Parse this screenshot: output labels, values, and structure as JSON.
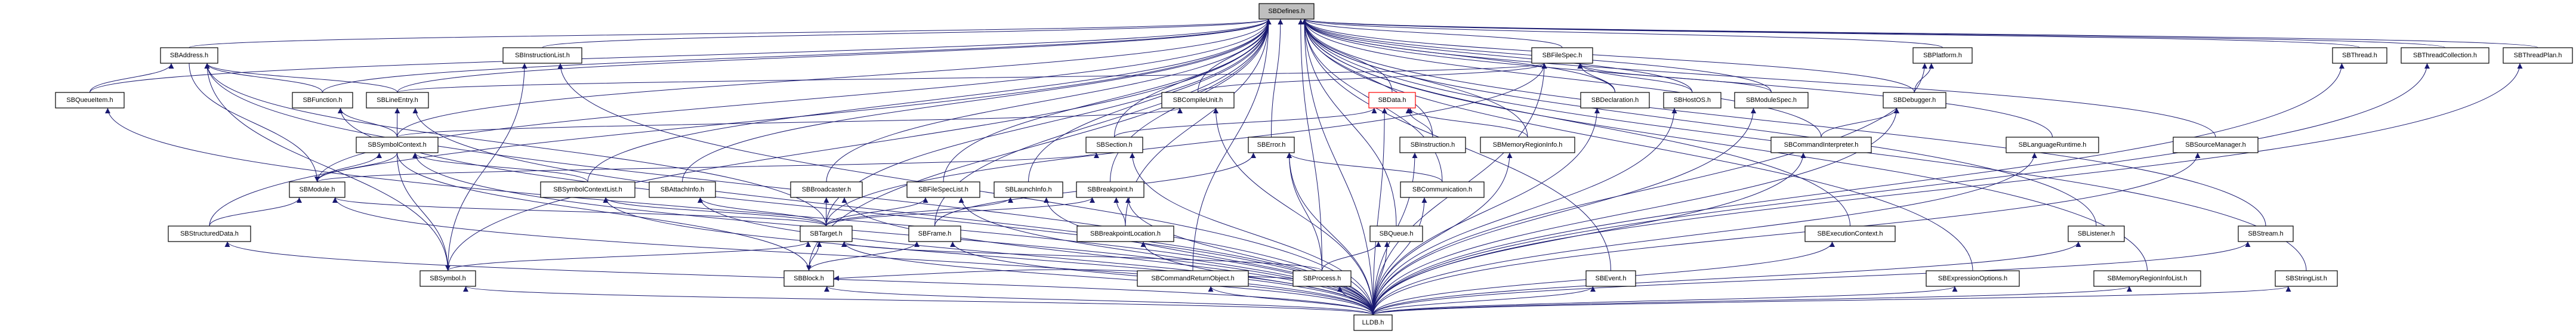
{
  "graph": {
    "type": "include-dependency-graph",
    "root": "SBDefines.h",
    "edge_color": "#191970",
    "root_fill": "#bfbfbf",
    "highlight_border": "#ff0000",
    "nodes": [
      {
        "id": "SBDefines",
        "label": "SBDefines.h",
        "style": "root"
      },
      {
        "id": "SBAddress",
        "label": "SBAddress.h"
      },
      {
        "id": "SBInstructionList",
        "label": "SBInstructionList.h"
      },
      {
        "id": "SBFileSpec",
        "label": "SBFileSpec.h"
      },
      {
        "id": "SBPlatform",
        "label": "SBPlatform.h"
      },
      {
        "id": "SBThread",
        "label": "SBThread.h"
      },
      {
        "id": "SBThreadCollection",
        "label": "SBThreadCollection.h"
      },
      {
        "id": "SBThreadPlan",
        "label": "SBThreadPlan.h"
      },
      {
        "id": "SBQueueItem",
        "label": "SBQueueItem.h"
      },
      {
        "id": "SBFunction",
        "label": "SBFunction.h"
      },
      {
        "id": "SBLineEntry",
        "label": "SBLineEntry.h"
      },
      {
        "id": "SBCompileUnit",
        "label": "SBCompileUnit.h"
      },
      {
        "id": "SBData",
        "label": "SBData.h",
        "style": "highlight"
      },
      {
        "id": "SBDeclaration",
        "label": "SBDeclaration.h"
      },
      {
        "id": "SBHostOS",
        "label": "SBHostOS.h"
      },
      {
        "id": "SBModuleSpec",
        "label": "SBModuleSpec.h"
      },
      {
        "id": "SBDebugger",
        "label": "SBDebugger.h"
      },
      {
        "id": "SBSymbolContext",
        "label": "SBSymbolContext.h"
      },
      {
        "id": "SBSection",
        "label": "SBSection.h"
      },
      {
        "id": "SBError",
        "label": "SBError.h"
      },
      {
        "id": "SBInstruction",
        "label": "SBInstruction.h"
      },
      {
        "id": "SBMemoryRegionInfo",
        "label": "SBMemoryRegionInfo.h"
      },
      {
        "id": "SBCommandInterpreter",
        "label": "SBCommandInterpreter.h"
      },
      {
        "id": "SBLanguageRuntime",
        "label": "SBLanguageRuntime.h"
      },
      {
        "id": "SBSourceManager",
        "label": "SBSourceManager.h"
      },
      {
        "id": "SBModule",
        "label": "SBModule.h"
      },
      {
        "id": "SBSymbolContextList",
        "label": "SBSymbolContextList.h"
      },
      {
        "id": "SBAttachInfo",
        "label": "SBAttachInfo.h"
      },
      {
        "id": "SBBroadcaster",
        "label": "SBBroadcaster.h"
      },
      {
        "id": "SBFileSpecList",
        "label": "SBFileSpecList.h"
      },
      {
        "id": "SBLaunchInfo",
        "label": "SBLaunchInfo.h"
      },
      {
        "id": "SBBreakpoint",
        "label": "SBBreakpoint.h"
      },
      {
        "id": "SBCommunication",
        "label": "SBCommunication.h"
      },
      {
        "id": "SBStructuredData",
        "label": "SBStructuredData.h"
      },
      {
        "id": "SBTarget",
        "label": "SBTarget.h"
      },
      {
        "id": "SBFrame",
        "label": "SBFrame.h"
      },
      {
        "id": "SBBreakpointLocation",
        "label": "SBBreakpointLocation.h"
      },
      {
        "id": "SBQueue",
        "label": "SBQueue.h"
      },
      {
        "id": "SBExecutionContext",
        "label": "SBExecutionContext.h"
      },
      {
        "id": "SBListener",
        "label": "SBListener.h"
      },
      {
        "id": "SBStream",
        "label": "SBStream.h"
      },
      {
        "id": "SBSymbol",
        "label": "SBSymbol.h"
      },
      {
        "id": "SBBlock",
        "label": "SBBlock.h"
      },
      {
        "id": "SBCommandReturnObject",
        "label": "SBCommandReturnObject.h"
      },
      {
        "id": "SBProcess",
        "label": "SBProcess.h"
      },
      {
        "id": "SBEvent",
        "label": "SBEvent.h"
      },
      {
        "id": "SBExpressionOptions",
        "label": "SBExpressionOptions.h"
      },
      {
        "id": "SBMemoryRegionInfoList",
        "label": "SBMemoryRegionInfoList.h"
      },
      {
        "id": "SBStringList",
        "label": "SBStringList.h"
      },
      {
        "id": "LLDB",
        "label": "LLDB.h"
      }
    ],
    "edges_note_all_include_root": true,
    "lldb_includes_all": true,
    "edges": [
      [
        "SBQueueItem",
        "SBAddress"
      ],
      [
        "SBFunction",
        "SBAddress"
      ],
      [
        "SBLineEntry",
        "SBAddress"
      ],
      [
        "SBLineEntry",
        "SBFileSpec"
      ],
      [
        "SBAddress",
        "SBModule"
      ],
      [
        "SBSymbolContext",
        "SBFunction"
      ],
      [
        "SBSymbolContext",
        "SBLineEntry"
      ],
      [
        "SBSymbolContext",
        "SBModule"
      ],
      [
        "SBModule",
        "SBSymbolContext"
      ],
      [
        "SBSymbolContext",
        "SBBlock"
      ],
      [
        "SBSymbolContext",
        "SBCompileUnit"
      ],
      [
        "SBSymbolContext",
        "SBSymbol"
      ],
      [
        "SBStructuredData",
        "SBModule"
      ],
      [
        "SBSymbol",
        "SBAddress"
      ],
      [
        "SBSymbol",
        "SBInstructionList"
      ],
      [
        "SBSymbol",
        "SBTarget"
      ],
      [
        "SBSymbolContextList",
        "SBSymbolContext"
      ],
      [
        "SBTarget",
        "SBSymbolContextList"
      ],
      [
        "SBTarget",
        "SBAttachInfo"
      ],
      [
        "SBTarget",
        "SBBroadcaster"
      ],
      [
        "SBTarget",
        "SBFileSpecList"
      ],
      [
        "SBTarget",
        "SBLaunchInfo"
      ],
      [
        "SBTarget",
        "SBBreakpoint"
      ],
      [
        "SBTarget",
        "SBAddress"
      ],
      [
        "SBTarget",
        "SBFileSpec"
      ],
      [
        "SBTarget",
        "SBModule"
      ],
      [
        "SBBlock",
        "SBTarget"
      ],
      [
        "SBBlock",
        "SBFrame"
      ],
      [
        "SBProcess",
        "SBTarget"
      ],
      [
        "SBBreakpointLocation",
        "SBBreakpoint"
      ],
      [
        "SBCompileUnit",
        "SBFileSpec"
      ],
      [
        "SBSection",
        "SBData"
      ],
      [
        "SBModule",
        "SBSection"
      ],
      [
        "SBInstruction",
        "SBData"
      ],
      [
        "SBMemoryRegionInfo",
        "SBData"
      ],
      [
        "SBCommunication",
        "SBError"
      ],
      [
        "SBProcess",
        "SBError"
      ],
      [
        "SBProcess",
        "SBQueue"
      ],
      [
        "SBDeclaration",
        "SBFileSpec"
      ],
      [
        "SBHostOS",
        "SBFileSpec"
      ],
      [
        "SBModuleSpec",
        "SBFileSpec"
      ],
      [
        "SBDebugger",
        "SBPlatform"
      ],
      [
        "SBCommandInterpreter",
        "SBDebugger"
      ],
      [
        "SBFrame",
        "SBError"
      ],
      [
        "SBProcess",
        "SBBlock"
      ]
    ]
  }
}
